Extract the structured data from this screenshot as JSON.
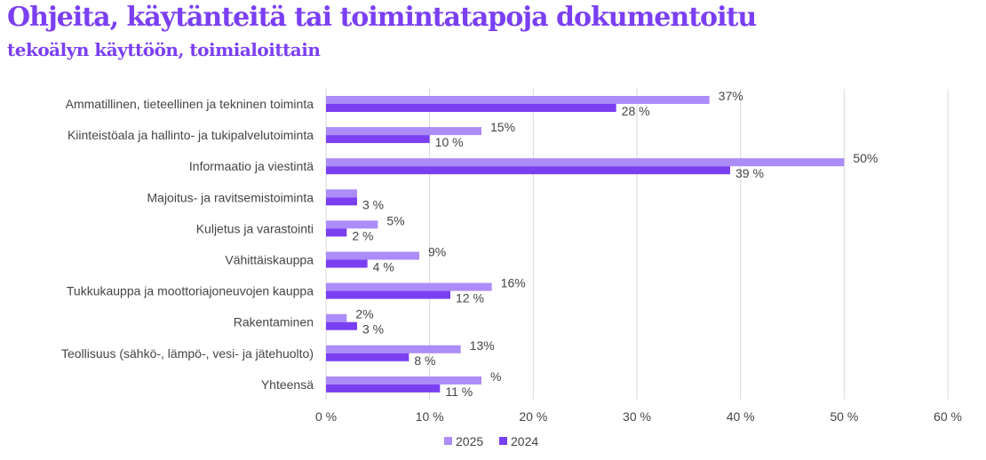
{
  "title": "Ohjeita, käytänteitä tai toimintatapoja dokumentoitu",
  "subtitle": "tekoälyn käyttöön, toimialoittain",
  "colors": {
    "s2025": "#ac8cf8",
    "s2024": "#7b3ff2",
    "grid": "#d9d9d9"
  },
  "chart_data": {
    "type": "bar",
    "orientation": "horizontal",
    "categories": [
      "Ammatillinen, tieteellinen ja tekninen toiminta",
      "Kiinteistöala ja hallinto- ja tukipalvelutoiminta",
      "Informaatio ja viestintä",
      "Majoitus- ja ravitsemistoiminta",
      "Kuljetus ja varastointi",
      "Vähittäiskauppa",
      "Tukkukauppa ja moottoriajoneuvojen kauppa",
      "Rakentaminen",
      "Teollisuus (sähkö-, lämpö-, vesi- ja jätehuolto)",
      "Yhteensä"
    ],
    "series": [
      {
        "name": "2025",
        "values": [
          37,
          15,
          50,
          3,
          5,
          9,
          16,
          2,
          13,
          15
        ],
        "labels": [
          "37%",
          "15%",
          "50%",
          "",
          "5%",
          "9%",
          "16%",
          "2%",
          "13%",
          "%"
        ]
      },
      {
        "name": "2024",
        "values": [
          28,
          10,
          39,
          3,
          2,
          4,
          12,
          3,
          8,
          11
        ],
        "labels": [
          "28 %",
          "10 %",
          "39 %",
          "3 %",
          "2 %",
          "4 %",
          "12 %",
          "3 %",
          "8 %",
          "11 %"
        ]
      }
    ],
    "xlim": [
      0,
      60
    ],
    "xticks": [
      "0 %",
      "10 %",
      "20 %",
      "30 %",
      "40 %",
      "50 %",
      "60 %"
    ],
    "grid": true,
    "legend": "bottom"
  }
}
